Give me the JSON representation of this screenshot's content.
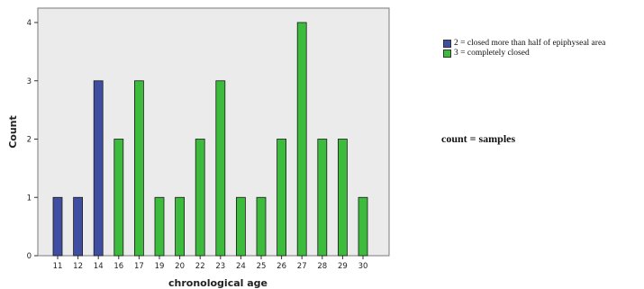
{
  "chart_data": {
    "type": "bar",
    "xlabel": "chronological age",
    "ylabel": "Count",
    "ylim": [
      0,
      4
    ],
    "yticks": [
      0,
      1,
      2,
      3,
      4
    ],
    "grid": false,
    "legend_position": "right",
    "categories": [
      "11",
      "12",
      "14",
      "16",
      "17",
      "19",
      "20",
      "22",
      "23",
      "24",
      "25",
      "26",
      "27",
      "28",
      "29",
      "30"
    ],
    "series": [
      {
        "name": "2 =  closed more than half of epiphyseal area",
        "color": "#3f4ea0",
        "values": [
          1,
          1,
          3,
          null,
          null,
          null,
          null,
          null,
          null,
          null,
          null,
          null,
          null,
          null,
          null,
          null
        ]
      },
      {
        "name": "3 =  completely closed",
        "color": "#3dbb3d",
        "values": [
          null,
          null,
          null,
          2,
          3,
          1,
          1,
          2,
          3,
          1,
          1,
          2,
          4,
          2,
          2,
          1
        ]
      }
    ]
  },
  "note": "count = samples",
  "colors": {
    "plot_background": "#ebebeb",
    "bar_border": "#1a1a1a"
  }
}
